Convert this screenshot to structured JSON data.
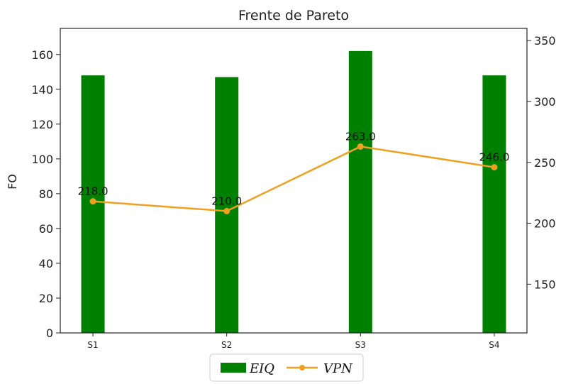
{
  "chart_data": {
    "type": "bar+line",
    "title": "Frente de Pareto",
    "categories": [
      "S1",
      "S2",
      "S3",
      "S4"
    ],
    "ylabel": "FO",
    "ylim": [
      0,
      175
    ],
    "yticks": [
      0,
      20,
      40,
      60,
      80,
      100,
      120,
      140,
      160
    ],
    "y2lim": [
      110,
      360
    ],
    "y2ticks": [
      150,
      200,
      250,
      300,
      350
    ],
    "series": [
      {
        "name": "EIQ",
        "type": "bar",
        "axis": "left",
        "color": "#008000",
        "values": [
          148,
          147,
          162,
          148
        ]
      },
      {
        "name": "VPN",
        "type": "line",
        "axis": "right",
        "color": "#f0a020",
        "values": [
          218.0,
          210.0,
          263.0,
          246.0
        ],
        "labels": [
          "218.0",
          "210.0",
          "263.0",
          "246.0"
        ]
      }
    ],
    "legend": {
      "placement": "bottom-center",
      "entries": [
        "EIQ",
        "VPN"
      ]
    },
    "grid": false
  }
}
